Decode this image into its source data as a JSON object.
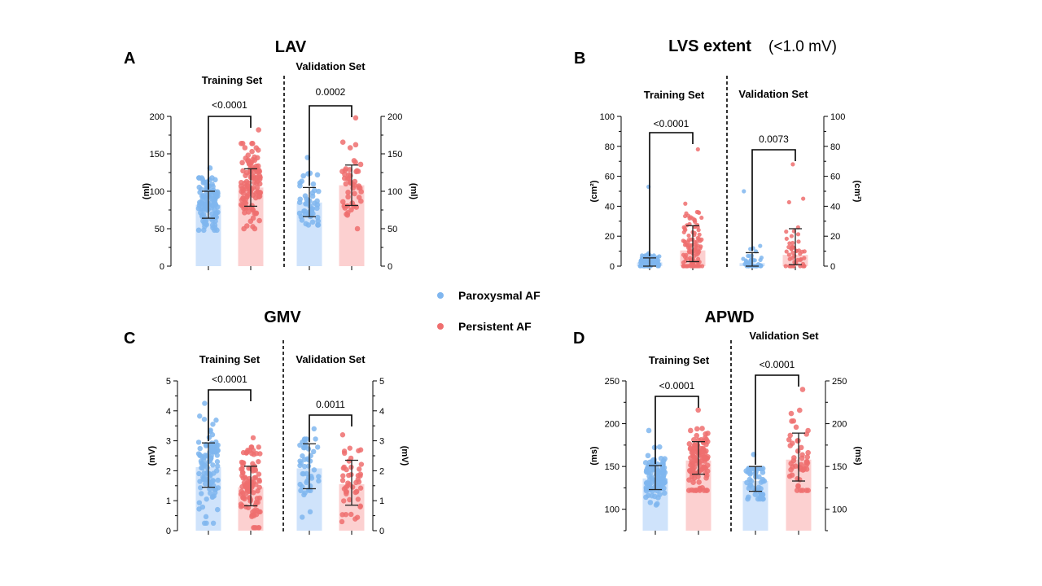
{
  "legend": [
    {
      "label": "Paroxysmal AF",
      "color": "#7fb6ef"
    },
    {
      "label": "Persistent AF",
      "color": "#ef6e6e"
    }
  ],
  "colors": {
    "blue_bar": "#cfe3fb",
    "red_bar": "#fcd0d0",
    "blue_dot": "#7fb6ef",
    "red_dot": "#ef6e6e"
  },
  "chart_data": [
    {
      "panel": "A",
      "title": "LAV",
      "title_suffix": "",
      "type": "bar",
      "ylabel": "(ml)",
      "ylabel_right": "(ml)",
      "ylim": [
        0,
        200
      ],
      "yticks": [
        0,
        50,
        100,
        150,
        200
      ],
      "sets": [
        {
          "label": "Training Set",
          "groups": [
            {
              "name": "Paroxysmal AF",
              "mean": 82,
              "sd_low": 64,
              "sd_high": 100,
              "min": 48,
              "max": 131
            },
            {
              "name": "Persistent AF",
              "mean": 105,
              "sd_low": 80,
              "sd_high": 130,
              "min": 50,
              "max": 182
            }
          ],
          "pvalue": "<0.0001"
        },
        {
          "label": "Validation Set",
          "groups": [
            {
              "name": "Paroxysmal AF",
              "mean": 85,
              "sd_low": 66,
              "sd_high": 105,
              "min": 55,
              "max": 145
            },
            {
              "name": "Persistent AF",
              "mean": 108,
              "sd_low": 81,
              "sd_high": 135,
              "min": 50,
              "max": 198
            }
          ],
          "pvalue": "0.0002"
        }
      ]
    },
    {
      "panel": "B",
      "title": "LVS extent",
      "title_suffix": "(<1.0 mV)",
      "type": "bar",
      "ylabel": "(cm²)",
      "ylabel_right": "(cm²)",
      "ylim": [
        0,
        100
      ],
      "yticks": [
        0,
        20,
        40,
        60,
        80,
        100
      ],
      "sets": [
        {
          "label": "Training Set",
          "groups": [
            {
              "name": "Paroxysmal AF",
              "mean": 2.5,
              "sd_low": 0,
              "sd_high": 5.5,
              "min": 0,
              "max": 53
            },
            {
              "name": "Persistent AF",
              "mean": 10.5,
              "sd_low": 3,
              "sd_high": 27,
              "min": 0,
              "max": 78
            }
          ],
          "pvalue": "<0.0001"
        },
        {
          "label": "Validation Set",
          "groups": [
            {
              "name": "Paroxysmal AF",
              "mean": 2,
              "sd_low": 0,
              "sd_high": 9,
              "min": 0,
              "max": 50
            },
            {
              "name": "Persistent AF",
              "mean": 7.5,
              "sd_low": 1,
              "sd_high": 25,
              "min": 0,
              "max": 68
            }
          ],
          "pvalue": "0.0073"
        }
      ]
    },
    {
      "panel": "C",
      "title": "GMV",
      "title_suffix": "",
      "type": "bar",
      "ylabel": "(mV)",
      "ylabel_right": "(mV)",
      "ylim": [
        0,
        5
      ],
      "yticks": [
        0,
        1,
        2,
        3,
        4,
        5
      ],
      "sets": [
        {
          "label": "Training Set",
          "groups": [
            {
              "name": "Paroxysmal AF",
              "mean": 2.12,
              "sd_low": 1.45,
              "sd_high": 2.93,
              "min": 0.25,
              "max": 4.25
            },
            {
              "name": "Persistent AF",
              "mean": 1.45,
              "sd_low": 0.83,
              "sd_high": 2.15,
              "min": 0.1,
              "max": 3.1
            }
          ],
          "pvalue": "<0.0001"
        },
        {
          "label": "Validation Set",
          "groups": [
            {
              "name": "Paroxysmal AF",
              "mean": 2.08,
              "sd_low": 1.4,
              "sd_high": 2.9,
              "min": 0.45,
              "max": 3.4
            },
            {
              "name": "Persistent AF",
              "mean": 1.55,
              "sd_low": 0.85,
              "sd_high": 2.35,
              "min": 0.3,
              "max": 3.2
            }
          ],
          "pvalue": "0.0011"
        }
      ]
    },
    {
      "panel": "D",
      "title": "APWD",
      "title_suffix": "",
      "type": "bar",
      "ylabel": "(ms)",
      "ylabel_right": "(ms)",
      "ylim": [
        75,
        250
      ],
      "yticks": [
        100,
        150,
        200,
        250
      ],
      "sets": [
        {
          "label": "Training Set",
          "groups": [
            {
              "name": "Paroxysmal AF",
              "mean": 136,
              "sd_low": 123,
              "sd_high": 151,
              "min": 105,
              "max": 192
            },
            {
              "name": "Persistent AF",
              "mean": 157,
              "sd_low": 141,
              "sd_high": 179,
              "min": 122,
              "max": 216
            }
          ],
          "pvalue": "<0.0001"
        },
        {
          "label": "Validation Set",
          "groups": [
            {
              "name": "Paroxysmal AF",
              "mean": 133,
              "sd_low": 121,
              "sd_high": 150,
              "min": 112,
              "max": 164
            },
            {
              "name": "Persistent AF",
              "mean": 158,
              "sd_low": 133,
              "sd_high": 189,
              "min": 122,
              "max": 240
            }
          ],
          "pvalue": "<0.0001"
        }
      ]
    }
  ]
}
